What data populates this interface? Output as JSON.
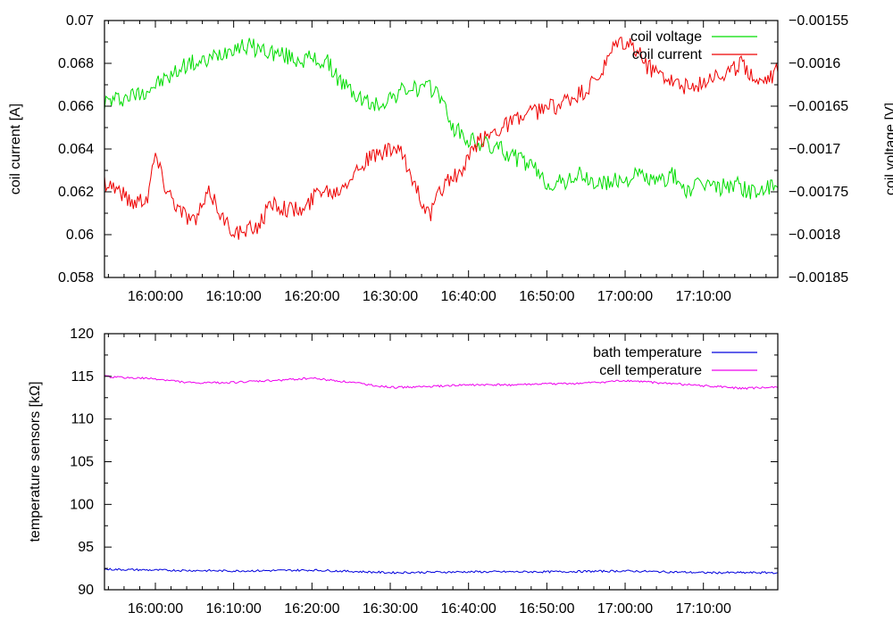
{
  "chart_data": [
    {
      "type": "line",
      "xlabel": "",
      "ylabel": "coil current [A]",
      "y2label": "coil voltage [V]",
      "x_range": [
        "15:53:30",
        "17:19:30"
      ],
      "x_ticks": [
        "16:00:00",
        "16:10:00",
        "16:20:00",
        "16:30:00",
        "16:40:00",
        "16:50:00",
        "17:00:00",
        "17:10:00"
      ],
      "ylim": [
        0.058,
        0.07
      ],
      "y_ticks": [
        "0.058",
        "0.06",
        "0.062",
        "0.064",
        "0.066",
        "0.068",
        "0.07"
      ],
      "y2lim": [
        -0.00185,
        -0.00155
      ],
      "y2_ticks": [
        "-0.00185",
        "-0.0018",
        "-0.00175",
        "-0.0017",
        "-0.00165",
        "-0.0016",
        "-0.00155"
      ],
      "grid": false,
      "legend_position": "top-right",
      "series": [
        {
          "name": "coil voltage",
          "axis": "y2",
          "color": "#00dd00",
          "x": [
            "15:53:30",
            "15:56:00",
            "15:58:00",
            "16:00:00",
            "16:02:00",
            "16:04:00",
            "16:06:00",
            "16:08:00",
            "16:10:00",
            "16:12:00",
            "16:14:00",
            "16:16:00",
            "16:18:00",
            "16:20:00",
            "16:22:00",
            "16:24:00",
            "16:26:00",
            "16:28:00",
            "16:30:00",
            "16:32:00",
            "16:34:00",
            "16:36:00",
            "16:38:00",
            "16:40:00",
            "16:42:00",
            "16:44:00",
            "16:46:00",
            "16:48:00",
            "16:50:00",
            "16:52:00",
            "16:54:00",
            "16:56:00",
            "16:58:00",
            "17:00:00",
            "17:02:00",
            "17:04:00",
            "17:06:00",
            "17:08:00",
            "17:10:00",
            "17:12:00",
            "17:14:00",
            "17:16:00",
            "17:19:30"
          ],
          "values": [
            -0.001645,
            -0.00164,
            -0.001635,
            -0.001625,
            -0.001615,
            -0.0016,
            -0.0016,
            -0.00159,
            -0.00158,
            -0.00158,
            -0.001585,
            -0.00159,
            -0.001595,
            -0.001595,
            -0.0016,
            -0.001625,
            -0.00164,
            -0.00165,
            -0.00164,
            -0.00163,
            -0.00163,
            -0.00163,
            -0.001675,
            -0.00169,
            -0.001695,
            -0.0017,
            -0.00171,
            -0.00172,
            -0.00174,
            -0.00174,
            -0.00173,
            -0.00174,
            -0.00174,
            -0.001735,
            -0.00173,
            -0.00174,
            -0.00173,
            -0.00175,
            -0.00174,
            -0.001745,
            -0.00174,
            -0.00175,
            -0.001745
          ]
        },
        {
          "name": "coil current",
          "axis": "y",
          "color": "#ee0000",
          "x": [
            "15:53:30",
            "15:55:00",
            "15:57:00",
            "15:59:00",
            "16:00:00",
            "16:01:00",
            "16:03:00",
            "16:05:00",
            "16:07:00",
            "16:09:00",
            "16:11:00",
            "16:13:00",
            "16:15:00",
            "16:17:00",
            "16:19:00",
            "16:21:00",
            "16:23:00",
            "16:25:00",
            "16:27:00",
            "16:29:00",
            "16:31:00",
            "16:33:00",
            "16:35:00",
            "16:37:00",
            "16:39:00",
            "16:41:00",
            "16:43:00",
            "16:45:00",
            "16:47:00",
            "16:49:00",
            "16:51:00",
            "16:53:00",
            "16:55:00",
            "16:57:00",
            "16:59:00",
            "17:01:00",
            "17:03:00",
            "17:05:00",
            "17:07:00",
            "17:09:00",
            "17:11:00",
            "17:13:00",
            "17:15:00",
            "17:17:00",
            "17:19:30"
          ],
          "values": [
            0.0625,
            0.0622,
            0.0615,
            0.0618,
            0.0638,
            0.0625,
            0.0612,
            0.0606,
            0.062,
            0.0605,
            0.06,
            0.0604,
            0.0615,
            0.0612,
            0.0611,
            0.0622,
            0.062,
            0.0628,
            0.0635,
            0.0638,
            0.064,
            0.0625,
            0.0608,
            0.0625,
            0.0628,
            0.0642,
            0.0648,
            0.0652,
            0.0655,
            0.0658,
            0.066,
            0.0663,
            0.0667,
            0.0675,
            0.069,
            0.0688,
            0.0678,
            0.0675,
            0.067,
            0.0668,
            0.0675,
            0.0675,
            0.068,
            0.0672,
            0.0676
          ]
        }
      ]
    },
    {
      "type": "line",
      "xlabel": "",
      "ylabel": "temperature sensors [kΩ]",
      "x_range": [
        "15:53:30",
        "17:19:30"
      ],
      "x_ticks": [
        "16:00:00",
        "16:10:00",
        "16:20:00",
        "16:30:00",
        "16:40:00",
        "16:50:00",
        "17:00:00",
        "17:10:00"
      ],
      "ylim": [
        90,
        120
      ],
      "y_ticks": [
        "90",
        "95",
        "100",
        "105",
        "110",
        "115",
        "120"
      ],
      "grid": false,
      "legend_position": "top-right",
      "series": [
        {
          "name": "bath temperature",
          "color": "#0000dd",
          "x": [
            "15:53:30",
            "16:00:00",
            "16:10:00",
            "16:20:00",
            "16:30:00",
            "16:40:00",
            "16:50:00",
            "17:00:00",
            "17:10:00",
            "17:19:30"
          ],
          "values": [
            92.4,
            92.3,
            92.2,
            92.3,
            92.0,
            92.1,
            92.1,
            92.2,
            92.0,
            92.0
          ]
        },
        {
          "name": "cell temperature",
          "color": "#ee00ee",
          "x": [
            "15:53:30",
            "15:55:00",
            "16:00:00",
            "16:05:00",
            "16:10:00",
            "16:15:00",
            "16:20:00",
            "16:25:00",
            "16:30:00",
            "16:35:00",
            "16:40:00",
            "16:45:00",
            "16:50:00",
            "16:55:00",
            "17:00:00",
            "17:05:00",
            "17:10:00",
            "17:15:00",
            "17:19:30"
          ],
          "values": [
            115.0,
            114.9,
            114.7,
            114.2,
            114.3,
            114.5,
            114.8,
            114.3,
            113.7,
            113.8,
            114.0,
            114.0,
            114.1,
            114.2,
            114.5,
            114.2,
            113.9,
            113.6,
            113.7
          ]
        }
      ]
    }
  ]
}
